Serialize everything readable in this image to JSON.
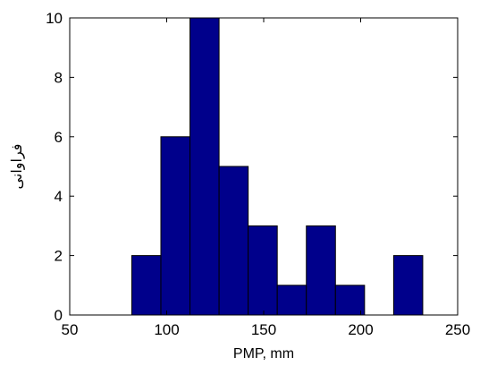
{
  "chart_data": {
    "type": "bar",
    "subtype": "histogram",
    "bins": [
      {
        "from": 82,
        "to": 97,
        "value": 2
      },
      {
        "from": 97,
        "to": 112,
        "value": 6
      },
      {
        "from": 112,
        "to": 127,
        "value": 10
      },
      {
        "from": 127,
        "to": 142,
        "value": 5
      },
      {
        "from": 142,
        "to": 157,
        "value": 3
      },
      {
        "from": 157,
        "to": 172,
        "value": 1
      },
      {
        "from": 172,
        "to": 187,
        "value": 3
      },
      {
        "from": 187,
        "to": 202,
        "value": 1
      },
      {
        "from": 202,
        "to": 217,
        "value": 0
      },
      {
        "from": 217,
        "to": 232,
        "value": 2
      }
    ],
    "title": "",
    "xlabel": "PMP, mm",
    "ylabel": "فراوانی",
    "xlim": [
      50,
      250
    ],
    "ylim": [
      0,
      10
    ],
    "xticks": [
      50,
      100,
      150,
      200,
      250
    ],
    "yticks": [
      0,
      2,
      4,
      6,
      8,
      10
    ],
    "grid": false,
    "bar_fill": "#00008B",
    "bar_edge": "#000000"
  }
}
